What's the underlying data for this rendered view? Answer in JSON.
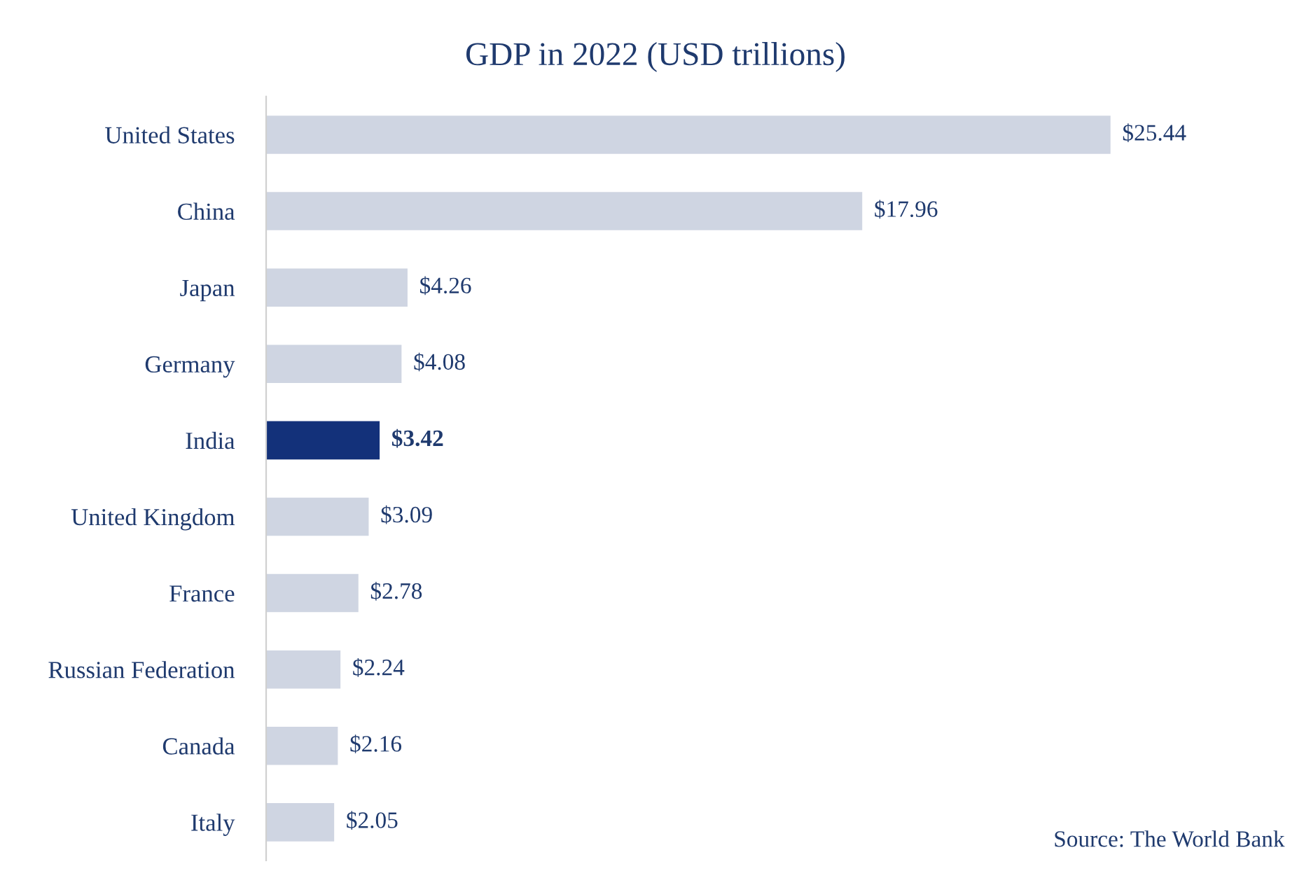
{
  "chart_data": {
    "type": "bar",
    "orientation": "horizontal",
    "title": "GDP in 2022 (USD trillions)",
    "categories": [
      "United States",
      "China",
      "Japan",
      "Germany",
      "India",
      "United Kingdom",
      "France",
      "Russian Federation",
      "Canada",
      "Italy"
    ],
    "values": [
      25.44,
      17.96,
      4.26,
      4.08,
      3.42,
      3.09,
      2.78,
      2.24,
      2.16,
      2.05
    ],
    "colors": [
      "#cfd5e2",
      "#cfd5e2",
      "#cfd5e2",
      "#cfd5e2",
      "#13317a",
      "#cfd5e2",
      "#cfd5e2",
      "#cfd5e2",
      "#cfd5e2",
      "#cfd5e2"
    ],
    "value_labels": [
      "$25.44",
      "$17.96",
      "$4.26",
      "$4.08",
      "$3.42",
      "$3.09",
      "$2.78",
      "$2.24",
      "$2.16",
      "$2.05"
    ],
    "annotations": [
      "Source: The World Bank"
    ],
    "grid": false,
    "legend": false
  }
}
